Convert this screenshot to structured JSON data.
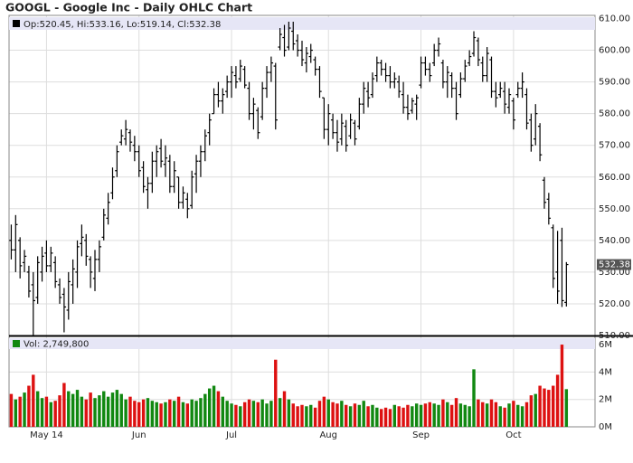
{
  "chart_data": {
    "type": "ohlc",
    "title": "GOOGL - Google Inc - Daily OHLC Chart",
    "price_legend": "Op:520.45, Hi:533.16, Lo:519.14, Cl:532.38",
    "volume_legend": "Vol: 2,749,800",
    "last_price_label": "532.38",
    "categories": [
      null,
      null,
      null,
      null,
      null,
      null,
      null,
      null,
      "May 14",
      null,
      null,
      null,
      null,
      null,
      null,
      null,
      null,
      null,
      null,
      null,
      null,
      null,
      null,
      null,
      null,
      null,
      null,
      null,
      null,
      "Jun",
      null,
      null,
      null,
      null,
      null,
      null,
      null,
      null,
      null,
      null,
      null,
      null,
      null,
      null,
      null,
      null,
      null,
      null,
      null,
      null,
      "Jul",
      null,
      null,
      null,
      null,
      null,
      null,
      null,
      null,
      null,
      null,
      null,
      null,
      null,
      null,
      null,
      null,
      null,
      null,
      null,
      null,
      null,
      "Aug",
      null,
      null,
      null,
      null,
      null,
      null,
      null,
      null,
      null,
      null,
      null,
      null,
      null,
      null,
      null,
      null,
      null,
      null,
      null,
      null,
      "Sep",
      null,
      null,
      null,
      null,
      null,
      null,
      null,
      null,
      null,
      null,
      null,
      null,
      null,
      null,
      null,
      null,
      null,
      null,
      null,
      null,
      "Oct",
      null,
      null,
      null,
      null,
      null,
      null,
      null,
      null,
      null,
      null,
      null,
      null
    ],
    "open": [
      540,
      537,
      540,
      533,
      530,
      526,
      522,
      530,
      536,
      532,
      533,
      526,
      523,
      518,
      526,
      530,
      539,
      540,
      534,
      528,
      534,
      541,
      547,
      555,
      562,
      571,
      572,
      574,
      570,
      568,
      563,
      556,
      558,
      565,
      569,
      564,
      565,
      557,
      560,
      552,
      553,
      551,
      561,
      565,
      568,
      574,
      580,
      586,
      584,
      587,
      590,
      592,
      591,
      594,
      588,
      580,
      581,
      579,
      588,
      593,
      595,
      601,
      604,
      601,
      606,
      603,
      600,
      596,
      598,
      597,
      594,
      585,
      575,
      578,
      574,
      572,
      576,
      573,
      577,
      576,
      583,
      587,
      586,
      592,
      596,
      594,
      592,
      590,
      590,
      586,
      582,
      581,
      583,
      589,
      596,
      594,
      596,
      600,
      596,
      590,
      592,
      588,
      586,
      591,
      596,
      599,
      603,
      596,
      592,
      597,
      587,
      586,
      587,
      582,
      584,
      586,
      588,
      586,
      578,
      572,
      576,
      559,
      553,
      544,
      530,
      540,
      520.45
    ],
    "high": [
      545,
      548,
      541,
      537,
      532,
      530,
      535,
      538,
      540,
      538,
      535,
      528,
      525,
      530,
      534,
      540,
      545,
      542,
      535,
      537,
      540,
      550,
      555,
      563,
      570,
      575,
      578,
      575,
      573,
      570,
      565,
      560,
      568,
      570,
      572,
      570,
      567,
      565,
      560,
      557,
      555,
      562,
      567,
      570,
      575,
      580,
      588,
      590,
      588,
      592,
      595,
      595,
      597,
      595,
      590,
      585,
      582,
      590,
      595,
      598,
      596,
      607,
      608,
      609,
      609,
      605,
      603,
      601,
      602,
      598,
      595,
      585,
      583,
      580,
      578,
      580,
      578,
      580,
      578,
      585,
      590,
      590,
      593,
      598,
      597,
      596,
      595,
      593,
      592,
      590,
      586,
      585,
      586,
      598,
      598,
      596,
      602,
      604,
      597,
      595,
      593,
      590,
      593,
      597,
      600,
      606,
      604,
      598,
      601,
      598,
      590,
      590,
      590,
      588,
      585,
      590,
      593,
      588,
      580,
      583,
      577,
      560,
      555,
      545,
      543,
      544,
      533.16
    ],
    "low": [
      534,
      530,
      528,
      530,
      522,
      510,
      520,
      527,
      530,
      530,
      525,
      520,
      511,
      515,
      520,
      525,
      535,
      532,
      525,
      524,
      530,
      540,
      545,
      553,
      560,
      570,
      570,
      568,
      565,
      560,
      555,
      550,
      555,
      560,
      563,
      560,
      555,
      555,
      550,
      550,
      547,
      550,
      555,
      560,
      565,
      570,
      580,
      582,
      580,
      585,
      585,
      588,
      590,
      588,
      578,
      575,
      572,
      578,
      585,
      590,
      575,
      600,
      598,
      600,
      600,
      598,
      595,
      593,
      596,
      592,
      585,
      572,
      570,
      572,
      568,
      570,
      568,
      572,
      570,
      575,
      580,
      582,
      585,
      590,
      592,
      590,
      588,
      588,
      585,
      580,
      578,
      580,
      578,
      588,
      592,
      590,
      595,
      598,
      588,
      585,
      585,
      578,
      585,
      590,
      595,
      598,
      595,
      590,
      590,
      585,
      582,
      585,
      580,
      580,
      575,
      585,
      585,
      575,
      568,
      570,
      565,
      550,
      545,
      525,
      520,
      519,
      519.14
    ],
    "close": [
      537,
      545,
      532,
      535,
      524,
      521,
      533,
      535,
      532,
      536,
      527,
      522,
      519,
      527,
      531,
      538,
      541,
      535,
      530,
      534,
      538,
      548,
      552,
      560,
      568,
      573,
      575,
      571,
      568,
      562,
      557,
      558,
      565,
      568,
      565,
      566,
      557,
      562,
      552,
      555,
      550,
      560,
      565,
      568,
      573,
      578,
      586,
      584,
      586,
      590,
      593,
      590,
      595,
      589,
      580,
      583,
      574,
      588,
      593,
      596,
      578,
      605,
      600,
      607,
      602,
      600,
      597,
      599,
      600,
      594,
      587,
      575,
      580,
      574,
      571,
      577,
      570,
      578,
      572,
      583,
      588,
      585,
      591,
      596,
      594,
      592,
      590,
      591,
      587,
      582,
      580,
      584,
      585,
      596,
      594,
      592,
      600,
      602,
      590,
      593,
      588,
      580,
      591,
      595,
      598,
      604,
      597,
      592,
      599,
      587,
      585,
      588,
      583,
      586,
      578,
      588,
      590,
      577,
      570,
      580,
      567,
      552,
      547,
      528,
      524,
      521,
      532.38
    ],
    "volume": [
      2.4,
      2.0,
      2.2,
      2.5,
      3.0,
      3.8,
      2.6,
      2.1,
      2.2,
      1.8,
      1.9,
      2.3,
      3.2,
      2.6,
      2.4,
      2.7,
      2.2,
      2.0,
      2.5,
      2.1,
      2.3,
      2.6,
      2.2,
      2.5,
      2.7,
      2.4,
      2.0,
      2.2,
      1.9,
      1.8,
      2.0,
      2.1,
      1.9,
      1.8,
      1.7,
      1.8,
      2.0,
      1.9,
      2.2,
      1.8,
      1.7,
      2.0,
      1.9,
      2.1,
      2.4,
      2.8,
      3.0,
      2.6,
      2.2,
      1.9,
      1.7,
      1.6,
      1.5,
      1.8,
      2.0,
      1.9,
      1.8,
      2.0,
      1.7,
      1.9,
      4.9,
      2.1,
      2.6,
      2.0,
      1.7,
      1.5,
      1.6,
      1.5,
      1.6,
      1.4,
      1.9,
      2.2,
      2.0,
      1.8,
      1.7,
      1.9,
      1.6,
      1.5,
      1.7,
      1.6,
      1.9,
      1.5,
      1.6,
      1.4,
      1.3,
      1.4,
      1.3,
      1.6,
      1.5,
      1.4,
      1.6,
      1.5,
      1.7,
      1.6,
      1.7,
      1.8,
      1.7,
      1.6,
      2.0,
      1.8,
      1.6,
      2.1,
      1.7,
      1.6,
      1.5,
      4.2,
      2.0,
      1.8,
      1.7,
      2.0,
      1.8,
      1.5,
      1.4,
      1.7,
      1.9,
      1.6,
      1.5,
      1.8,
      2.3,
      2.4,
      3.0,
      2.8,
      2.7,
      3.0,
      3.8,
      6.0,
      2.7498
    ],
    "bar_color": "#000000",
    "up_color": "#118811",
    "down_color": "#dd1111",
    "ylim": [
      510,
      611
    ],
    "yticks": [
      {
        "value": 510,
        "label": "510.00"
      },
      {
        "value": 520,
        "label": "520.00"
      },
      {
        "value": 530,
        "label": "530.00"
      },
      {
        "value": 540,
        "label": "540.00"
      },
      {
        "value": 550,
        "label": "550.00"
      },
      {
        "value": 560,
        "label": "560.00"
      },
      {
        "value": 570,
        "label": "570.00"
      },
      {
        "value": 580,
        "label": "580.00"
      },
      {
        "value": 590,
        "label": "590.00"
      },
      {
        "value": 600,
        "label": "600.00"
      },
      {
        "value": 610,
        "label": "610.00"
      }
    ],
    "volume_ylim": [
      0,
      6.6
    ],
    "volume_yticks": [
      {
        "value": 0,
        "label": "0M"
      },
      {
        "value": 2,
        "label": "2M"
      },
      {
        "value": 4,
        "label": "4M"
      },
      {
        "value": 6,
        "label": "6M"
      }
    ],
    "grid": true
  }
}
